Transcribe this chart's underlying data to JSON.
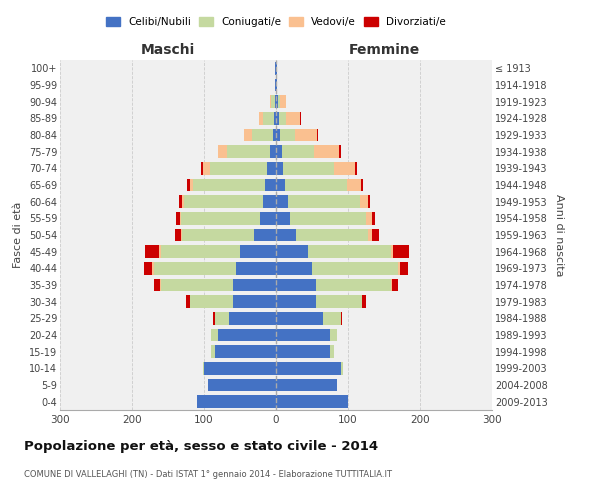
{
  "age_groups": [
    "0-4",
    "5-9",
    "10-14",
    "15-19",
    "20-24",
    "25-29",
    "30-34",
    "35-39",
    "40-44",
    "45-49",
    "50-54",
    "55-59",
    "60-64",
    "65-69",
    "70-74",
    "75-79",
    "80-84",
    "85-89",
    "90-94",
    "95-99",
    "100+"
  ],
  "birth_years": [
    "2009-2013",
    "2004-2008",
    "1999-2003",
    "1994-1998",
    "1989-1993",
    "1984-1988",
    "1979-1983",
    "1974-1978",
    "1969-1973",
    "1964-1968",
    "1959-1963",
    "1954-1958",
    "1949-1953",
    "1944-1948",
    "1939-1943",
    "1934-1938",
    "1929-1933",
    "1924-1928",
    "1919-1923",
    "1914-1918",
    "≤ 1913"
  ],
  "males": {
    "celibi": [
      110,
      95,
      100,
      85,
      80,
      65,
      60,
      60,
      55,
      50,
      30,
      22,
      18,
      15,
      12,
      8,
      4,
      3,
      2,
      1,
      1
    ],
    "coniugati": [
      0,
      0,
      2,
      5,
      10,
      20,
      60,
      100,
      115,
      110,
      100,
      110,
      110,
      100,
      80,
      60,
      30,
      15,
      5,
      1,
      0
    ],
    "vedovi": [
      0,
      0,
      0,
      0,
      0,
      0,
      0,
      1,
      2,
      2,
      2,
      2,
      3,
      5,
      10,
      12,
      10,
      5,
      2,
      0,
      0
    ],
    "divorziati": [
      0,
      0,
      0,
      0,
      0,
      2,
      5,
      8,
      12,
      20,
      8,
      5,
      4,
      3,
      2,
      1,
      1,
      1,
      0,
      0,
      0
    ]
  },
  "females": {
    "nubili": [
      100,
      85,
      90,
      75,
      75,
      65,
      55,
      55,
      50,
      45,
      28,
      20,
      16,
      13,
      10,
      8,
      5,
      4,
      3,
      1,
      1
    ],
    "coniugate": [
      0,
      0,
      3,
      5,
      10,
      25,
      65,
      105,
      120,
      115,
      100,
      105,
      100,
      85,
      70,
      45,
      22,
      10,
      3,
      0,
      0
    ],
    "vedove": [
      0,
      0,
      0,
      0,
      0,
      0,
      0,
      1,
      2,
      3,
      5,
      8,
      12,
      20,
      30,
      35,
      30,
      20,
      8,
      1,
      0
    ],
    "divorziate": [
      0,
      0,
      0,
      0,
      0,
      2,
      5,
      8,
      12,
      22,
      10,
      5,
      3,
      3,
      3,
      2,
      1,
      1,
      0,
      0,
      0
    ]
  },
  "color_celibi": "#4472C4",
  "color_coniugati": "#C5D9A0",
  "color_vedovi": "#FAC090",
  "color_divorziati": "#CC0000",
  "title": "Popolazione per età, sesso e stato civile - 2014",
  "subtitle": "COMUNE DI VALLELAGHI (TN) - Dati ISTAT 1° gennaio 2014 - Elaborazione TUTTITALIA.IT",
  "xlabel_left": "Maschi",
  "xlabel_right": "Femmine",
  "ylabel_left": "Fasce di età",
  "ylabel_right": "Anni di nascita",
  "xlim": 300,
  "bg_color": "#ffffff",
  "plot_bg_color": "#f0f0f0",
  "grid_color": "#cccccc"
}
